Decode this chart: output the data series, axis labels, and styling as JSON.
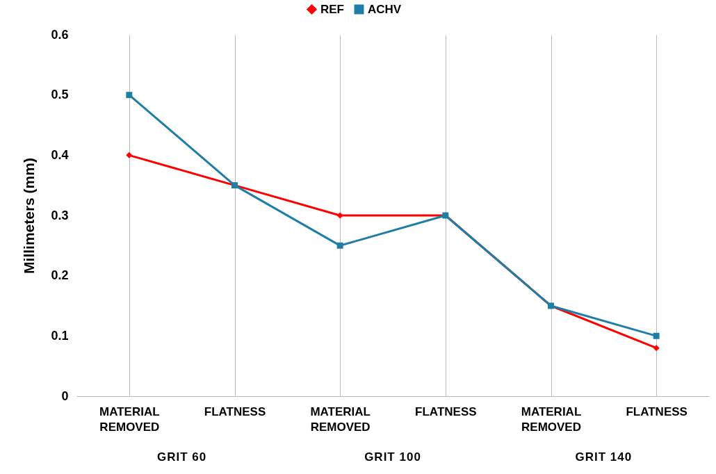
{
  "chart_data": {
    "type": "line",
    "ylabel": "Millimeters (mm)",
    "categories": [
      "MATERIAL REMOVED",
      "FLATNESS",
      "MATERIAL REMOVED",
      "FLATNESS",
      "MATERIAL REMOVED",
      "FLATNESS"
    ],
    "annotations": [
      "GRIT 60",
      "GRIT 100",
      "GRIT 140"
    ],
    "series": [
      {
        "name": "REF",
        "color": "#ff0000",
        "marker": "diamond",
        "values": [
          0.4,
          0.35,
          0.3,
          0.3,
          0.15,
          0.08
        ]
      },
      {
        "name": "ACHV",
        "color": "#1f7ea8",
        "marker": "square",
        "values": [
          0.5,
          0.35,
          0.25,
          0.3,
          0.15,
          0.1
        ]
      }
    ],
    "ylim": [
      0,
      0.6
    ],
    "yticks": [
      0,
      0.1,
      0.2,
      0.3,
      0.4,
      0.5,
      0.6
    ],
    "grid": "x",
    "legend": "top"
  }
}
